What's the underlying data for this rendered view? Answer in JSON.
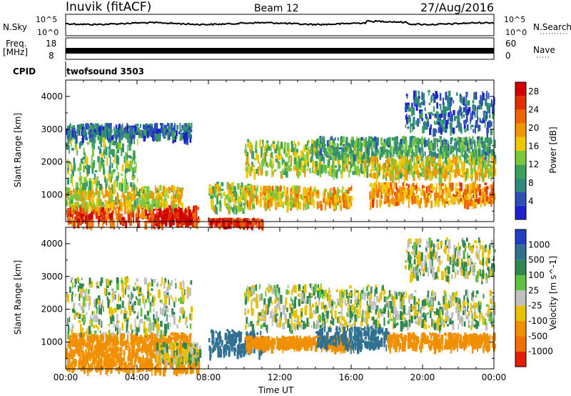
{
  "header": {
    "station": "Inuvik (fitACF)",
    "beam": "Beam 12",
    "date": "27/Aug/2016"
  },
  "status_panel": {
    "nsky_label": "N.Sky",
    "nsky_ticks": [
      "10^5",
      "10^0"
    ],
    "nsearch_label": "N.Search",
    "nsearch_ticks": [
      "10^5",
      "10^0"
    ],
    "freq_label_line1": "Freq.",
    "freq_label_line2": "[MHz]",
    "freq_ticks": [
      "18",
      "8"
    ],
    "nave_label": "Nave",
    "nave_ticks": [
      "60",
      "0"
    ],
    "cpid_label": "CPID",
    "cpid_value": "twofsound 3503"
  },
  "colors": {
    "power_scale": [
      "#2020d0",
      "#2e50b4",
      "#2e8a7a",
      "#3ca05a",
      "#7ac83c",
      "#f0c800",
      "#f09600",
      "#f06400",
      "#e03000",
      "#d00000"
    ],
    "velocity_scale": [
      "#2040c0",
      "#307090",
      "#308850",
      "#60c040",
      "#c0c0c0",
      "#e8c000",
      "#f09000",
      "#f07000",
      "#e02000"
    ]
  },
  "chart_data": [
    {
      "type": "heatmap",
      "panel": "power",
      "ylabel": "Slant Range [km]",
      "y_ticks": [
        "4000",
        "3000",
        "2000",
        "1000"
      ],
      "ylim": [
        180,
        4500
      ],
      "x_ticks": [
        "00:00",
        "04:00",
        "08:00",
        "12:00",
        "16:00",
        "20:00",
        "00:00"
      ],
      "xlim_hours": [
        0,
        24
      ],
      "colorbar_label": "Power [dB]",
      "colorbar_ticks": [
        "28",
        "24",
        "20",
        "16",
        "12",
        "8",
        "4"
      ],
      "zlim": [
        0,
        30
      ],
      "echo_regions": [
        {
          "t0": 0.0,
          "t1": 7.5,
          "r0": 200,
          "r1": 700,
          "value": 24
        },
        {
          "t0": 0.0,
          "t1": 6.5,
          "r0": 700,
          "r1": 1300,
          "value": 16
        },
        {
          "t0": 0.0,
          "t1": 4.0,
          "r0": 1300,
          "r1": 2800,
          "value": 12
        },
        {
          "t0": 5.0,
          "t1": 7.0,
          "r0": 200,
          "r1": 600,
          "value": 30
        },
        {
          "t0": 0.0,
          "t1": 7.0,
          "r0": 2800,
          "r1": 3200,
          "value": 6
        },
        {
          "t0": 8.0,
          "t1": 10.5,
          "r0": 600,
          "r1": 1400,
          "value": 14
        },
        {
          "t0": 8.0,
          "t1": 11.0,
          "r0": 180,
          "r1": 300,
          "value": 26
        },
        {
          "t0": 10.0,
          "t1": 16.0,
          "r0": 700,
          "r1": 1300,
          "value": 18
        },
        {
          "t0": 10.0,
          "t1": 17.0,
          "r0": 1700,
          "r1": 2700,
          "value": 14
        },
        {
          "t0": 14.0,
          "t1": 24.0,
          "r0": 2200,
          "r1": 2800,
          "value": 10
        },
        {
          "t0": 17.0,
          "t1": 24.0,
          "r0": 800,
          "r1": 1400,
          "value": 20
        },
        {
          "t0": 17.0,
          "t1": 24.0,
          "r0": 1600,
          "r1": 2200,
          "value": 16
        },
        {
          "t0": 19.0,
          "t1": 24.0,
          "r0": 3000,
          "r1": 4200,
          "value": 6
        }
      ]
    },
    {
      "type": "heatmap",
      "panel": "velocity",
      "ylabel": "Slant Range [km]",
      "y_ticks": [
        "4000",
        "3000",
        "2000",
        "1000"
      ],
      "ylim": [
        180,
        4500
      ],
      "x_ticks": [
        "00:00",
        "04:00",
        "08:00",
        "12:00",
        "16:00",
        "20:00",
        "00:00"
      ],
      "xlim_hours": [
        0,
        24
      ],
      "xlabel": "Time UT",
      "colorbar_label": "Velocity [m s^-1]",
      "colorbar_ticks": [
        "1000",
        "500",
        "100",
        "25",
        "-25",
        "-100",
        "-500",
        "-1000"
      ],
      "echo_regions": [
        {
          "t0": 0.0,
          "t1": 7.5,
          "r0": 200,
          "r1": 800,
          "value": -200
        },
        {
          "t0": 0.0,
          "t1": 7.0,
          "r0": 800,
          "r1": 1300,
          "value": -300
        },
        {
          "t0": 0.0,
          "t1": 7.0,
          "r0": 1300,
          "r1": 3000,
          "value": 0
        },
        {
          "t0": 5.0,
          "t1": 7.5,
          "r0": 500,
          "r1": 1000,
          "value": 0
        },
        {
          "t0": 8.0,
          "t1": 11.0,
          "r0": 700,
          "r1": 1400,
          "value": 200
        },
        {
          "t0": 10.0,
          "t1": 16.0,
          "r0": 900,
          "r1": 1200,
          "value": -300
        },
        {
          "t0": 10.0,
          "t1": 18.0,
          "r0": 1500,
          "r1": 2800,
          "value": 0
        },
        {
          "t0": 14.0,
          "t1": 18.0,
          "r0": 900,
          "r1": 1500,
          "value": 300
        },
        {
          "t0": 18.0,
          "t1": 24.0,
          "r0": 900,
          "r1": 1300,
          "value": -300
        },
        {
          "t0": 18.0,
          "t1": 24.0,
          "r0": 1500,
          "r1": 2600,
          "value": 0
        },
        {
          "t0": 19.0,
          "t1": 24.0,
          "r0": 3000,
          "r1": 4200,
          "value": 0
        }
      ]
    }
  ]
}
